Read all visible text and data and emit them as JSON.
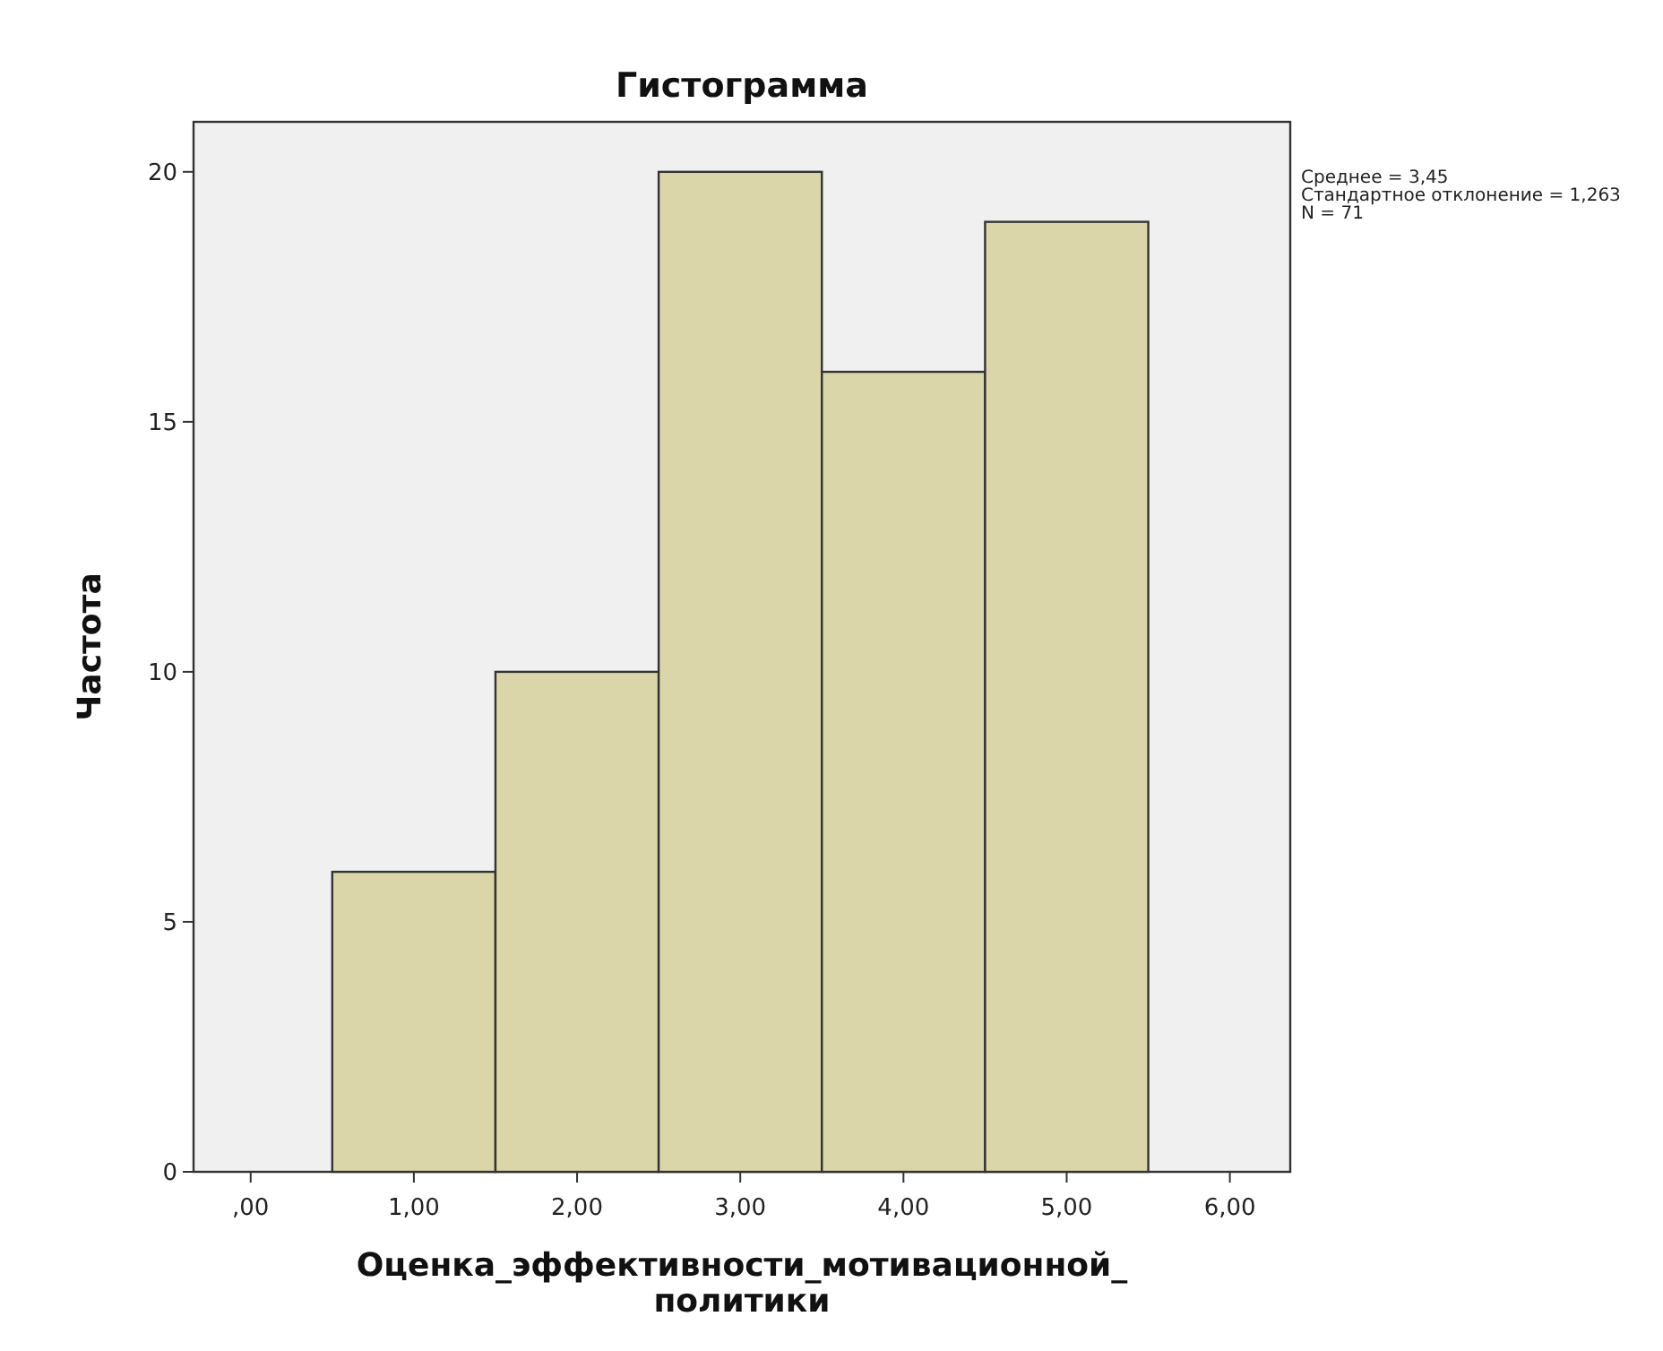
{
  "chart_data": {
    "type": "histogram",
    "title": "Гистограмма",
    "xlabel": "Оценка_эффективности_мотивационной_политики",
    "ylabel": "Частота",
    "bins": [
      0.5,
      1.5,
      2.5,
      3.5,
      4.5,
      5.5
    ],
    "values": [
      6,
      10,
      20,
      16,
      19
    ],
    "color": "#dbd6a9",
    "xlim": [
      -0.35,
      6.37
    ],
    "xticks": [
      {
        "value": 0,
        "label": ",00"
      },
      {
        "value": 1,
        "label": "1,00"
      },
      {
        "value": 2,
        "label": "2,00"
      },
      {
        "value": 3,
        "label": "3,00"
      },
      {
        "value": 4,
        "label": "4,00"
      },
      {
        "value": 5,
        "label": "5,00"
      },
      {
        "value": 6,
        "label": "6,00"
      }
    ],
    "ylim": [
      0,
      21
    ],
    "yticks": [
      0,
      5,
      10,
      15,
      20
    ],
    "grid": false,
    "annotations": [
      "Среднее = 3,45",
      "Стандартное отклонение = 1,263",
      "N = 71"
    ]
  }
}
